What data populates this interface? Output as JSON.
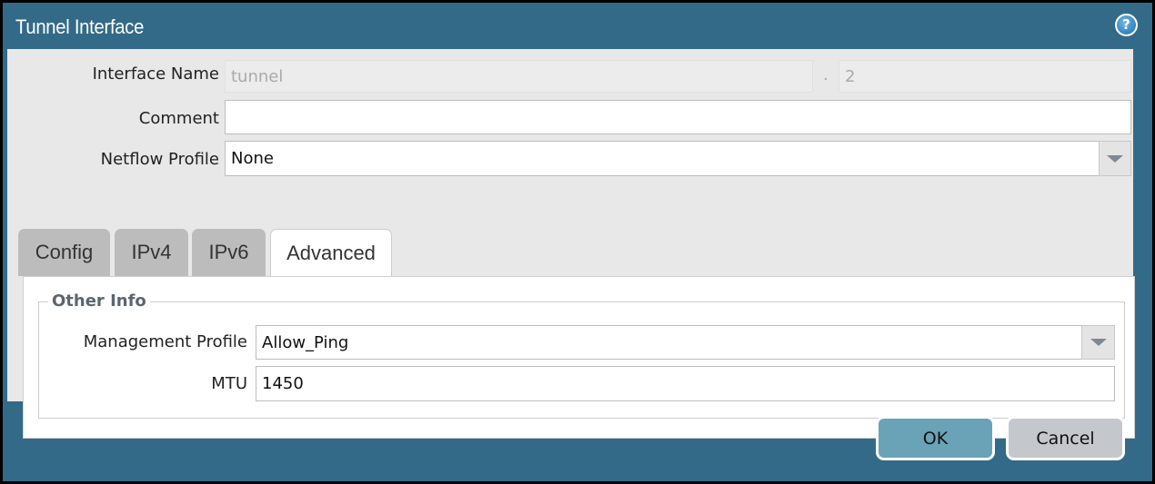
{
  "dialog": {
    "title": "Tunnel Interface",
    "help_icon": "help-icon"
  },
  "form": {
    "interface_name": {
      "label": "Interface Name",
      "value": "tunnel",
      "separator": ".",
      "sub_value": "2"
    },
    "comment": {
      "label": "Comment",
      "value": ""
    },
    "netflow_profile": {
      "label": "Netflow Profile",
      "value": "None"
    }
  },
  "tabs": [
    {
      "label": "Config"
    },
    {
      "label": "IPv4"
    },
    {
      "label": "IPv6"
    },
    {
      "label": "Advanced",
      "active": true
    }
  ],
  "advanced": {
    "group_title": "Other Info",
    "management_profile": {
      "label": "Management Profile",
      "value": "Allow_Ping"
    },
    "mtu": {
      "label": "MTU",
      "value": "1450"
    }
  },
  "footer": {
    "ok_label": "OK",
    "cancel_label": "Cancel"
  },
  "colors": {
    "titlebar": "#336a87",
    "ok_button": "#6aa3b8",
    "cancel_button": "#c4c8cc"
  }
}
